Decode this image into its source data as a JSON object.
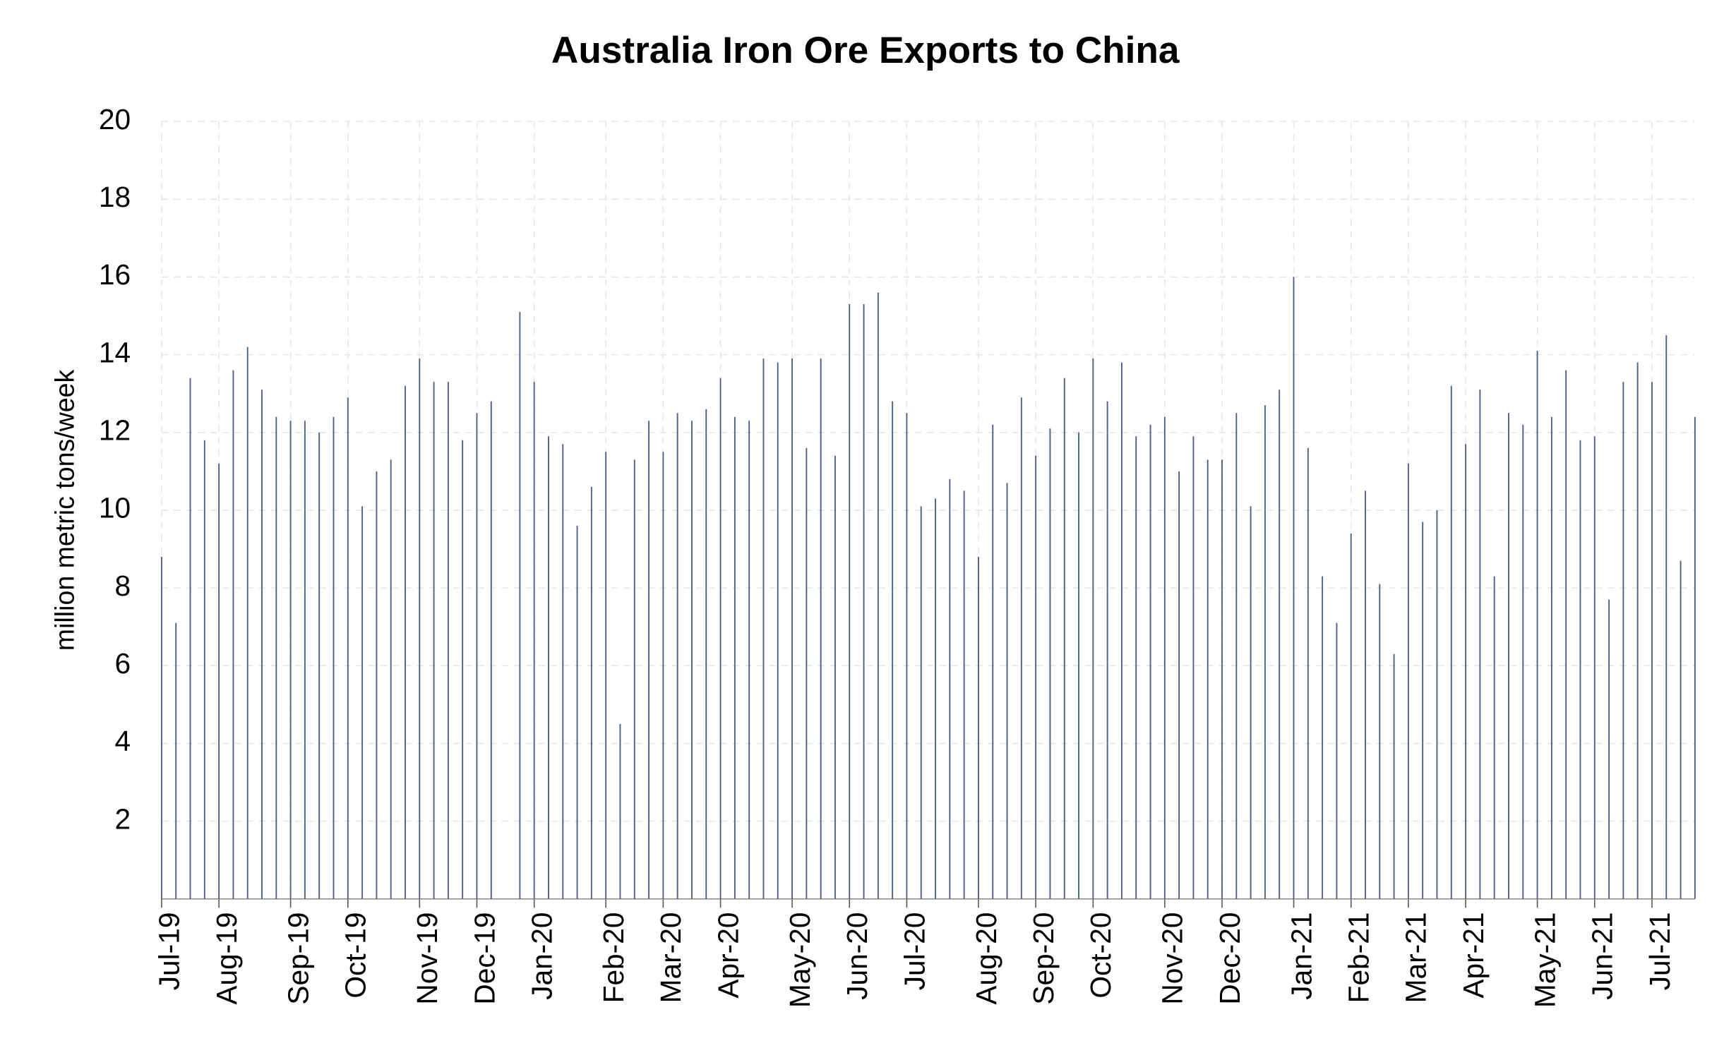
{
  "chart_data": {
    "type": "bar",
    "title": "Australia Iron Ore Exports to China",
    "y_label": "million metric tons/week",
    "categories": [
      "Jul-19",
      null,
      null,
      null,
      "Aug-19",
      null,
      null,
      null,
      null,
      "Sep-19",
      null,
      null,
      null,
      "Oct-19",
      null,
      null,
      null,
      null,
      "Nov-19",
      null,
      null,
      null,
      "Dec-19",
      null,
      null,
      null,
      "Jan-20",
      null,
      null,
      null,
      null,
      "Feb-20",
      null,
      null,
      null,
      "Mar-20",
      null,
      null,
      null,
      "Apr-20",
      null,
      null,
      null,
      null,
      "May-20",
      null,
      null,
      null,
      "Jun-20",
      null,
      null,
      null,
      "Jul-20",
      null,
      null,
      null,
      null,
      "Aug-20",
      null,
      null,
      null,
      "Sep-20",
      null,
      null,
      null,
      "Oct-20",
      null,
      null,
      null,
      null,
      "Nov-20",
      null,
      null,
      null,
      "Dec-20",
      null,
      null,
      null,
      null,
      "Jan-21",
      null,
      null,
      null,
      "Feb-21",
      null,
      null,
      null,
      "Mar-21",
      null,
      null,
      null,
      "Apr-21",
      null,
      null,
      null,
      null,
      "May-21",
      null,
      null,
      null,
      "Jun-21",
      null,
      null,
      null,
      "Jul-21",
      null,
      null,
      null
    ],
    "values": [
      8.8,
      7.1,
      13.4,
      11.8,
      11.2,
      13.6,
      14.2,
      13.1,
      12.4,
      12.3,
      12.3,
      12.0,
      12.4,
      12.9,
      10.1,
      11.0,
      11.3,
      13.2,
      13.9,
      13.3,
      13.3,
      11.8,
      12.5,
      12.8,
      null,
      15.1,
      13.3,
      11.9,
      11.7,
      9.6,
      10.6,
      11.5,
      4.5,
      11.3,
      12.3,
      11.5,
      12.5,
      12.3,
      12.6,
      13.4,
      12.4,
      12.3,
      13.9,
      13.8,
      13.9,
      11.6,
      13.9,
      11.4,
      15.3,
      15.3,
      15.6,
      12.8,
      12.5,
      10.1,
      10.3,
      10.8,
      10.5,
      8.8,
      12.2,
      10.7,
      12.9,
      11.4,
      12.1,
      13.4,
      12.0,
      13.9,
      12.8,
      13.8,
      11.9,
      12.2,
      12.4,
      11.0,
      11.9,
      11.3,
      11.3,
      12.5,
      10.1,
      12.7,
      13.1,
      16.0,
      11.6,
      8.3,
      7.1,
      9.4,
      10.5,
      8.1,
      6.3,
      11.2,
      9.7,
      10.0,
      13.2,
      11.7,
      13.1,
      8.3,
      12.5,
      12.2,
      14.1,
      12.4,
      13.6,
      11.8,
      11.9,
      7.7,
      13.3,
      13.8,
      13.3,
      14.5,
      8.7,
      12.4
    ],
    "color": "#4a6088",
    "ylim": [
      0,
      20
    ],
    "yticks": [
      2,
      4,
      6,
      8,
      10,
      12,
      14,
      16,
      18,
      20
    ],
    "grid": true
  }
}
